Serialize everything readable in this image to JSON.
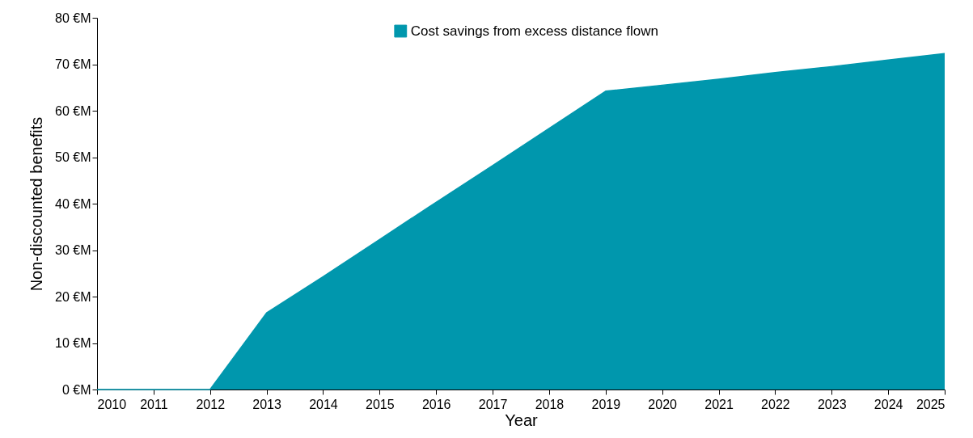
{
  "chart_data": {
    "type": "area",
    "xlabel": "Year",
    "ylabel": "Non-discounted benefits",
    "x": [
      2010,
      2011,
      2012,
      2013,
      2014,
      2015,
      2016,
      2017,
      2018,
      2019,
      2020,
      2021,
      2022,
      2023,
      2024,
      2025
    ],
    "series": [
      {
        "name": "Cost savings from excess distance flown",
        "color": "#0097ad",
        "values": [
          0,
          0,
          0,
          16.5,
          24.3,
          32.3,
          40.3,
          48.2,
          56.2,
          64.2,
          65.5,
          66.8,
          68.2,
          69.5,
          70.9,
          72.3
        ]
      }
    ],
    "xlim": [
      2010,
      2025
    ],
    "xticks": [
      2010,
      2011,
      2012,
      2013,
      2014,
      2015,
      2016,
      2017,
      2018,
      2019,
      2020,
      2021,
      2022,
      2023,
      2024,
      2025
    ],
    "ylim": [
      0,
      80
    ],
    "yticks": [
      {
        "value": 0,
        "label": "0 €M"
      },
      {
        "value": 10,
        "label": "10 €M"
      },
      {
        "value": 20,
        "label": "20 €M"
      },
      {
        "value": 30,
        "label": "30 €M"
      },
      {
        "value": 40,
        "label": "40 €M"
      },
      {
        "value": 50,
        "label": "50 €M"
      },
      {
        "value": 60,
        "label": "60 €M"
      },
      {
        "value": 70,
        "label": "70 €M"
      },
      {
        "value": 80,
        "label": "80 €M"
      }
    ],
    "grid": false,
    "legend": "top"
  }
}
